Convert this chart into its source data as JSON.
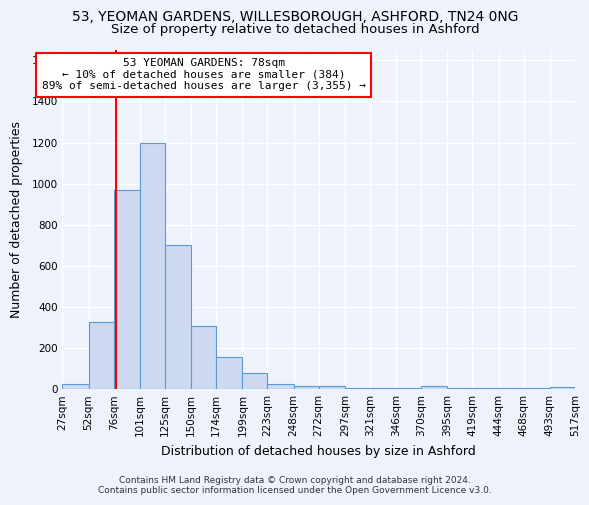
{
  "title_line1": "53, YEOMAN GARDENS, WILLESBOROUGH, ASHFORD, TN24 0NG",
  "title_line2": "Size of property relative to detached houses in Ashford",
  "xlabel": "Distribution of detached houses by size in Ashford",
  "ylabel": "Number of detached properties",
  "bar_values": [
    25,
    325,
    970,
    1200,
    700,
    305,
    155,
    80,
    25,
    15,
    15,
    5,
    5,
    5,
    15,
    5,
    5,
    5,
    5,
    10
  ],
  "bin_edges": [
    27,
    52,
    76,
    101,
    125,
    150,
    174,
    199,
    223,
    248,
    272,
    297,
    321,
    346,
    370,
    395,
    419,
    444,
    468,
    493,
    517
  ],
  "tick_labels": [
    "27sqm",
    "52sqm",
    "76sqm",
    "101sqm",
    "125sqm",
    "150sqm",
    "174sqm",
    "199sqm",
    "223sqm",
    "248sqm",
    "272sqm",
    "297sqm",
    "321sqm",
    "346sqm",
    "370sqm",
    "395sqm",
    "419sqm",
    "444sqm",
    "468sqm",
    "493sqm",
    "517sqm"
  ],
  "bar_color": "#ccd9f0",
  "bar_edge_color": "#5b9bd5",
  "property_line_x": 78,
  "property_line_color": "red",
  "ylim": [
    0,
    1650
  ],
  "yticks": [
    0,
    200,
    400,
    600,
    800,
    1000,
    1200,
    1400,
    1600
  ],
  "annotation_text": "53 YEOMAN GARDENS: 78sqm\n← 10% of detached houses are smaller (384)\n89% of semi-detached houses are larger (3,355) →",
  "annotation_box_color": "white",
  "annotation_box_edge_color": "red",
  "footer_text": "Contains HM Land Registry data © Crown copyright and database right 2024.\nContains public sector information licensed under the Open Government Licence v3.0.",
  "background_color": "#eef2fb",
  "grid_color": "white",
  "title_fontsize": 10,
  "subtitle_fontsize": 9.5,
  "axis_label_fontsize": 9,
  "tick_fontsize": 7.5,
  "annotation_fontsize": 8,
  "footer_fontsize": 6.5
}
